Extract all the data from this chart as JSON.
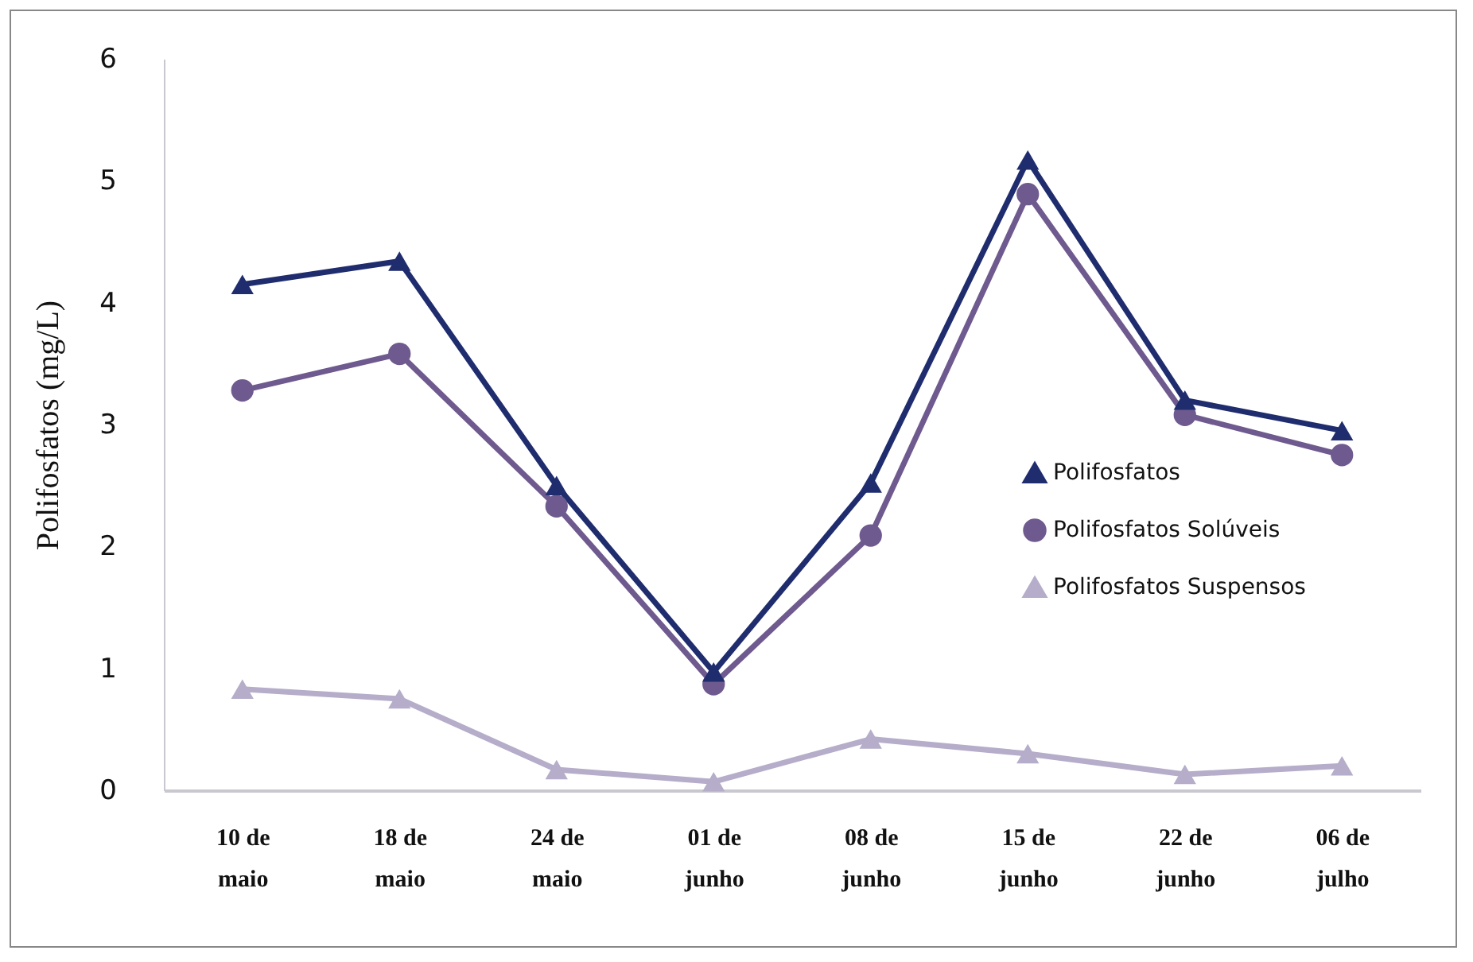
{
  "chart_data": {
    "type": "line",
    "ylabel": "Polifosfatos (mg/L)",
    "categories": [
      "10 de maio",
      "18 de maio",
      "24 de maio",
      "01 de junho",
      "08 de junho",
      "15 de junho",
      "22 de junho",
      "06 de julho"
    ],
    "series": [
      {
        "name": "Polifosfatos",
        "color": "#1f2d6e",
        "marker": "triangle",
        "values": [
          4.15,
          4.34,
          2.5,
          0.97,
          2.52,
          5.17,
          3.2,
          2.95
        ]
      },
      {
        "name": "Polifosfatos Solúveis",
        "color": "#6e5a8e",
        "marker": "circle",
        "values": [
          3.28,
          3.58,
          2.33,
          0.87,
          2.09,
          4.89,
          3.08,
          2.75
        ]
      },
      {
        "name": "Polifosfatos Suspensos",
        "color": "#b5adc9",
        "marker": "triangle",
        "values": [
          0.83,
          0.75,
          0.17,
          0.07,
          0.42,
          0.3,
          0.13,
          0.2
        ]
      }
    ],
    "ylim": [
      0,
      6
    ],
    "yticks": [
      0,
      1,
      2,
      3,
      4,
      5,
      6
    ],
    "grid": false,
    "legend": "right"
  }
}
